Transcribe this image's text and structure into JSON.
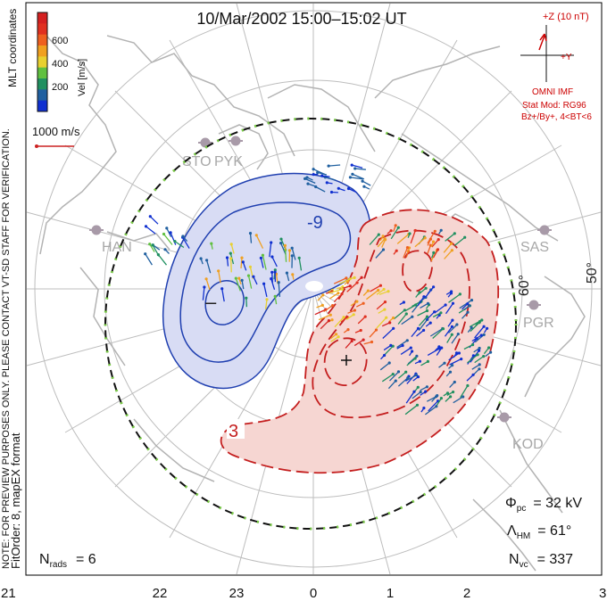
{
  "title": "10/Mar/2002  15:00–15:02  UT",
  "side_notes": {
    "preview": "NOTE: FOR PREVIEW PURPOSES ONLY. PLEASE CONTACT VT-SD STAFF FOR VERIFICATION.",
    "fit": "FitOrder: 8, mapEX format",
    "coords": "MLT coordinates"
  },
  "velocity_scale": {
    "title": "Vel [m/s]",
    "ticks": [
      "600",
      "400",
      "200"
    ],
    "colors": [
      "#d42020",
      "#e03020",
      "#ee6020",
      "#f0a020",
      "#e8d030",
      "#60c040",
      "#209060",
      "#2060a0",
      "#1030d0"
    ]
  },
  "reference_vector": {
    "label": "1000 m/s",
    "color": "#cc2222"
  },
  "imf": {
    "z_label": "+Z (10 nT)",
    "y_label": "+Y",
    "source": "OMNI IMF",
    "model": "Stat Mod: RG96",
    "condition": "Bz+/By+, 4<BT<6",
    "color": "#cc0000"
  },
  "stations": [
    "STO",
    "PYK",
    "HAN",
    "SAS",
    "PGR",
    "KOD"
  ],
  "latitude_labels": [
    "60°",
    "50°"
  ],
  "contour_labels": {
    "negative": "-9",
    "positive": "3"
  },
  "stats": {
    "phi_label": "Φ",
    "phi_sub": "pc",
    "phi_value": "= 32 kV",
    "lambda_label": "Λ",
    "lambda_sub": "HM",
    "lambda_value": "= 61°",
    "nvc_label": "N",
    "nvc_sub": "vc",
    "nvc_value": "= 337",
    "nrads_label": "N",
    "nrads_sub": "rads",
    "nrads_value": "= 6"
  },
  "mlt_axis": [
    "21",
    "22",
    "23",
    "0",
    "1",
    "2",
    "3"
  ],
  "colors": {
    "negative_fill": "#d8dcf4",
    "negative_line": "#1f3fb0",
    "positive_fill": "#f6d6d2",
    "positive_line": "#c41e1e",
    "grid": "#bdbdbd",
    "coast": "#b3b3b3",
    "station": "#a89aa8"
  }
}
